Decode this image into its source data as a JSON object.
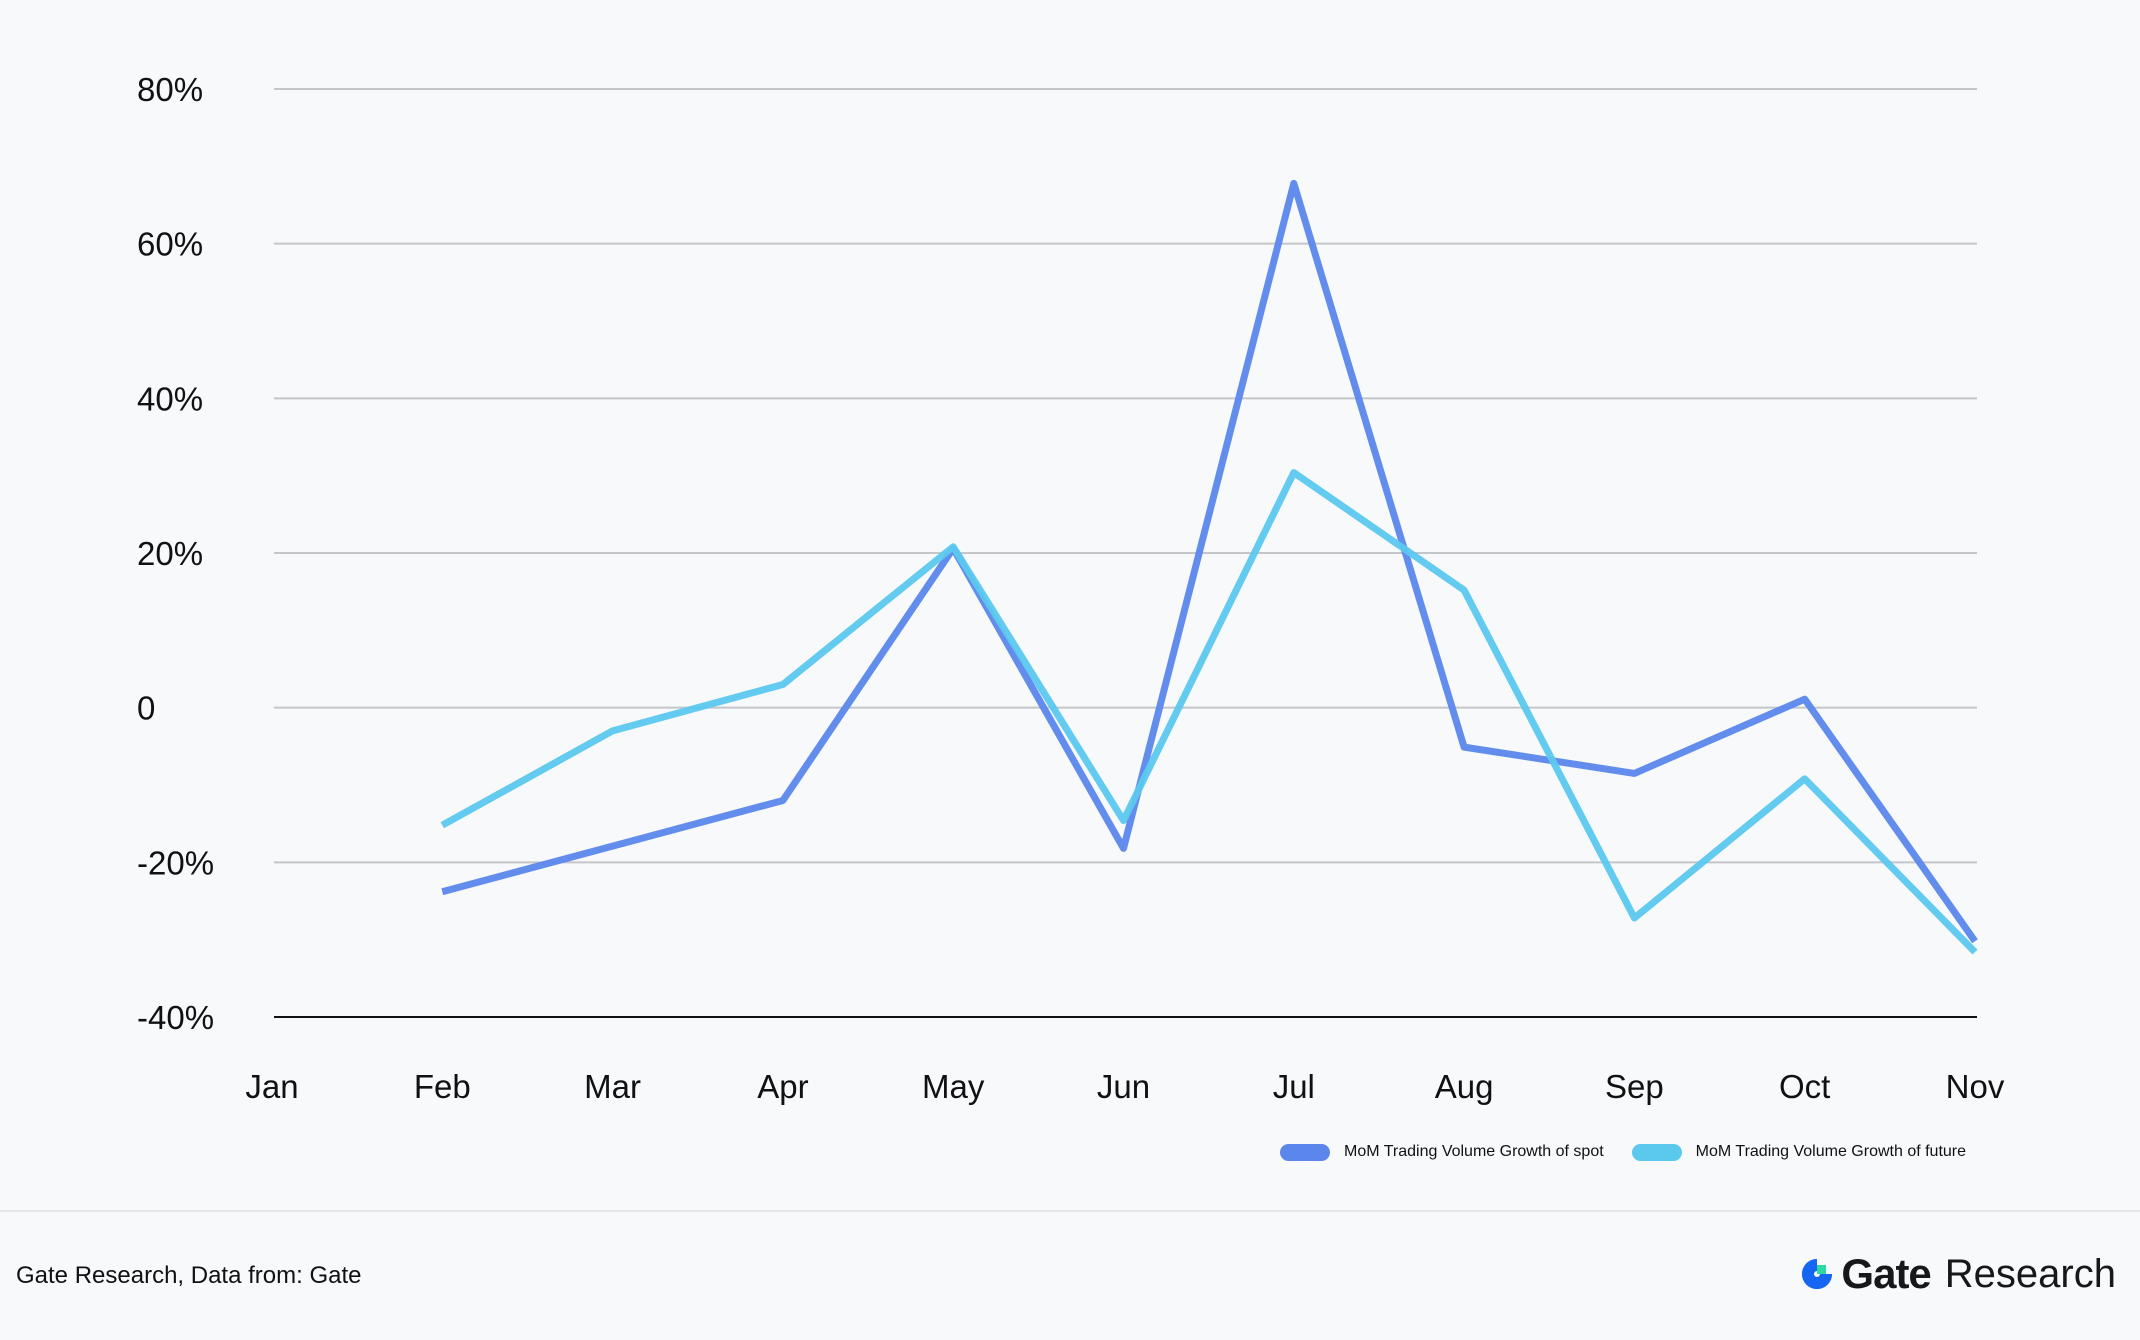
{
  "chart_data": {
    "type": "line",
    "title": "",
    "xlabel": "",
    "ylabel": "",
    "categories": [
      "Jan",
      "Feb",
      "Mar",
      "Apr",
      "May",
      "Jun",
      "Jul",
      "Aug",
      "Sep",
      "Oct",
      "Nov"
    ],
    "ylim": [
      -40,
      80
    ],
    "yticks": [
      80,
      60,
      40,
      20,
      0,
      -20,
      -40
    ],
    "ytick_labels": [
      "80%",
      "60%",
      "40%",
      "20%",
      "0",
      "-20%",
      "-40%"
    ],
    "grid": true,
    "legend_position": "bottom-right",
    "series": [
      {
        "name": "MoM Trading Volume Growth of spot",
        "color": "#5b87ec",
        "values": [
          null,
          -23.8,
          -17.9,
          -12.0,
          20.6,
          -18.2,
          67.8,
          -5.1,
          -8.5,
          1.1,
          -30.2
        ]
      },
      {
        "name": "MoM Trading Volume Growth of future",
        "color": "#5bc8ee",
        "values": [
          null,
          -15.2,
          -3.0,
          3.0,
          20.8,
          -14.6,
          30.4,
          15.2,
          -27.2,
          -9.2,
          -31.6
        ]
      }
    ]
  },
  "footer": {
    "source": "Gate Research, Data from: Gate",
    "logo_gate": "Gate",
    "logo_research": "Research"
  }
}
